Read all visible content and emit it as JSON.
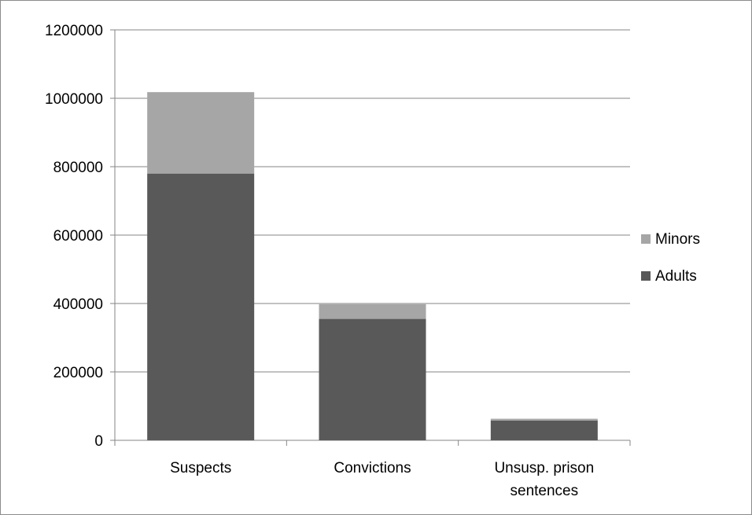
{
  "chart_data": {
    "type": "bar",
    "stacked": true,
    "categories": [
      "Suspects",
      "Convictions",
      "Unsusp. prison sentences"
    ],
    "category_lines": [
      [
        "Suspects"
      ],
      [
        "Convictions"
      ],
      [
        "Unsusp. prison",
        "sentences"
      ]
    ],
    "series": [
      {
        "name": "Adults",
        "values": [
          780000,
          355000,
          58000
        ],
        "color": "#595959"
      },
      {
        "name": "Minors",
        "values": [
          238000,
          43000,
          5000
        ],
        "color": "#a6a6a6"
      }
    ],
    "legend_order": [
      "Minors",
      "Adults"
    ],
    "ylim": [
      0,
      1200000
    ],
    "yticks": [
      0,
      200000,
      400000,
      600000,
      800000,
      1000000,
      1200000
    ],
    "ytick_labels": [
      "0",
      "200000",
      "400000",
      "600000",
      "800000",
      "1000000",
      "1200000"
    ],
    "grid": true,
    "legend_position": "right",
    "title": "",
    "xlabel": "",
    "ylabel": ""
  }
}
